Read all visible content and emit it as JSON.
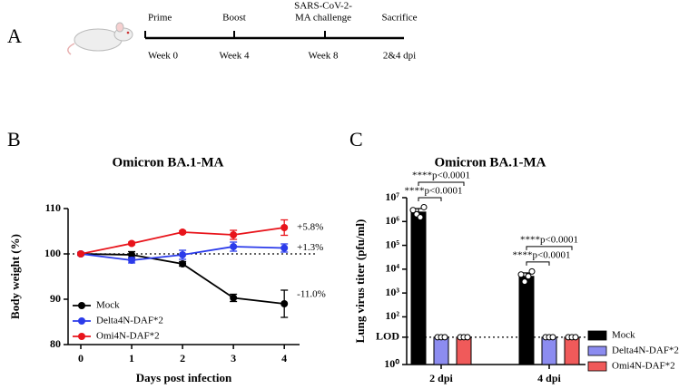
{
  "panel_labels": [
    "A",
    "B",
    "C"
  ],
  "timeline": {
    "events": [
      {
        "above": [
          "Prime"
        ],
        "below": "Week 0"
      },
      {
        "above": [
          "Boost"
        ],
        "below": "Week 4"
      },
      {
        "above": [
          "SARS-CoV-2-",
          "MA challenge"
        ],
        "below": "Week 8"
      },
      {
        "above": [
          "Sacrifice"
        ],
        "below": "2&4 dpi"
      }
    ]
  },
  "chart_data": [
    {
      "type": "line",
      "title": "Omicron BA.1-MA",
      "xlabel": "Days post infection",
      "ylabel": "Body weight (%)",
      "x": [
        0,
        1,
        2,
        3,
        4
      ],
      "xlim": [
        -0.25,
        4.3
      ],
      "xticks": [
        0,
        1,
        2,
        3,
        4
      ],
      "ylim": [
        80,
        110
      ],
      "yticks": [
        80,
        90,
        100,
        110
      ],
      "reference_line": 100,
      "legend": "lower left",
      "series": [
        {
          "name": "Mock",
          "color": "#000000",
          "values": [
            100,
            99.8,
            97.8,
            90.3,
            89
          ],
          "errors": [
            0.3,
            0.7,
            0.5,
            0.8,
            3
          ],
          "end_label": "-11.0%"
        },
        {
          "name": "Delta4N-DAF*2",
          "color": "#2b3bea",
          "values": [
            100,
            98.6,
            99.8,
            101.6,
            101.3
          ],
          "errors": [
            0.3,
            0.6,
            1,
            1,
            0.9
          ],
          "end_label": "+1.3%"
        },
        {
          "name": "Omi4N-DAF*2",
          "color": "#e8141b",
          "values": [
            100,
            102.3,
            104.8,
            104.2,
            105.8
          ],
          "errors": [
            0.2,
            0.3,
            0.3,
            1,
            1.7
          ],
          "end_label": "+5.8%"
        }
      ]
    },
    {
      "type": "bar",
      "title": "Omicron BA.1-MA",
      "ylabel": "Lung virus titer (pfu/ml)",
      "log": true,
      "categories": [
        "2 dpi",
        "4 dpi"
      ],
      "ylim": [
        1,
        10000000
      ],
      "yticks": [
        {
          "value": 1,
          "label": "10⁰"
        },
        {
          "value": 14,
          "label": "LOD"
        },
        {
          "value": 100,
          "label": "10²"
        },
        {
          "value": 1000,
          "label": "10³"
        },
        {
          "value": 10000,
          "label": "10⁴"
        },
        {
          "value": 100000,
          "label": "10⁵"
        },
        {
          "value": 1000000,
          "label": "10⁶"
        },
        {
          "value": 10000000,
          "label": "10⁷"
        }
      ],
      "reference_line": 14,
      "legend": "right",
      "series": [
        {
          "name": "Mock",
          "color": "#000000",
          "values": [
            2500000,
            5000
          ],
          "errors": [
            1000000,
            2000
          ],
          "points": [
            [
              3000000,
              2000000,
              1500000,
              4000000
            ],
            [
              6000,
              3000,
              5000,
              8000
            ]
          ]
        },
        {
          "name": "Delta4N-DAF*2",
          "color": "#8c8cf0",
          "values": [
            14,
            14
          ],
          "errors": [
            0,
            0
          ],
          "points": [
            [
              14,
              14,
              14
            ],
            [
              14,
              14,
              14
            ]
          ]
        },
        {
          "name": "Omi4N-DAF*2",
          "color": "#f05a5a",
          "values": [
            14,
            14
          ],
          "errors": [
            0,
            0
          ],
          "points": [
            [
              14,
              14,
              14
            ],
            [
              14,
              14,
              14
            ]
          ]
        }
      ],
      "comparisons": [
        [
          "****p<0.0001",
          "****p<0.0001"
        ],
        [
          "****p<0.0001",
          "****p<0.0001"
        ]
      ]
    }
  ]
}
